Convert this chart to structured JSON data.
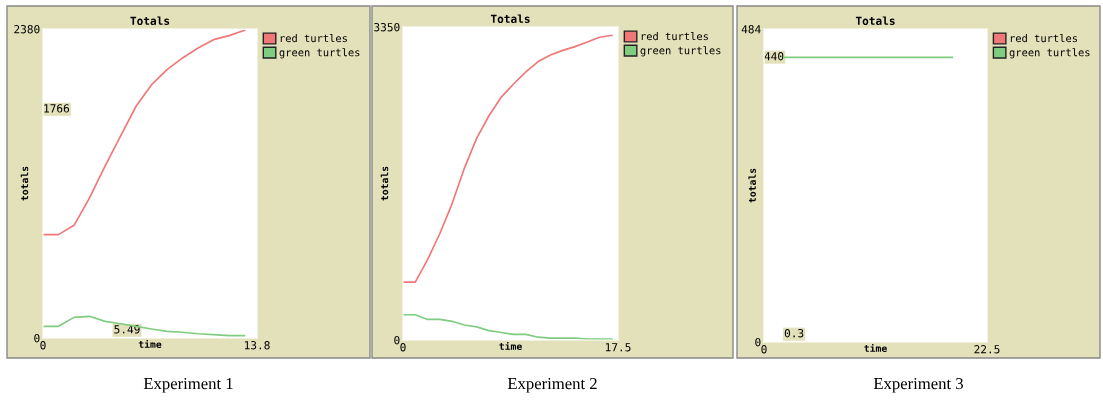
{
  "chart_data": [
    {
      "type": "line",
      "title": "Totals",
      "xlabel": "time",
      "ylabel": "totals",
      "xlim": [
        0,
        13.8
      ],
      "ylim": [
        0,
        2380
      ],
      "xticks": [
        0,
        13.8
      ],
      "yticks": [
        0,
        2380
      ],
      "grid": false,
      "legend": "right",
      "x": [
        0,
        1,
        2,
        3,
        4,
        5,
        6,
        7,
        8,
        9,
        10,
        11,
        12,
        13
      ],
      "series": [
        {
          "name": "red turtles",
          "color": "#f07878",
          "values": [
            796,
            796,
            868,
            1079,
            1323,
            1554,
            1785,
            1951,
            2067,
            2157,
            2234,
            2298,
            2329,
            2370
          ]
        },
        {
          "name": "green turtles",
          "color": "#80cc80",
          "values": [
            90,
            90,
            159,
            167,
            128,
            110,
            90,
            69,
            51,
            44,
            33,
            26,
            18,
            18
          ]
        }
      ],
      "annotations": [
        "1766",
        "5.49",
        "Experiment 1"
      ]
    },
    {
      "type": "line",
      "title": "Totals",
      "xlabel": "time",
      "ylabel": "totals",
      "xlim": [
        0,
        17.5
      ],
      "ylim": [
        0,
        3350
      ],
      "xticks": [
        0,
        17.5
      ],
      "yticks": [
        0,
        3350
      ],
      "grid": false,
      "legend": "right",
      "x": [
        0,
        1,
        2,
        3,
        4,
        5,
        6,
        7,
        8,
        9,
        10,
        11,
        12,
        13,
        14,
        15,
        16,
        17
      ],
      "series": [
        {
          "name": "red turtles",
          "color": "#f07878",
          "values": [
            620,
            620,
            860,
            1140,
            1460,
            1840,
            2160,
            2400,
            2600,
            2740,
            2870,
            2980,
            3050,
            3100,
            3140,
            3190,
            3240,
            3260
          ]
        },
        {
          "name": "green turtles",
          "color": "#80cc80",
          "values": [
            270,
            270,
            220,
            220,
            200,
            160,
            140,
            100,
            80,
            60,
            60,
            30,
            20,
            20,
            20,
            10,
            10,
            10
          ]
        }
      ],
      "annotations": [
        "Experiment 2"
      ]
    },
    {
      "type": "line",
      "title": "Totals",
      "xlabel": "time",
      "ylabel": "totals",
      "xlim": [
        0,
        22.5
      ],
      "ylim": [
        0,
        484
      ],
      "xticks": [
        0,
        22.5
      ],
      "yticks": [
        0,
        484
      ],
      "grid": false,
      "legend": "right",
      "x": [
        2,
        19
      ],
      "series": [
        {
          "name": "red turtles",
          "color": "#f07878",
          "values": [
            null,
            null
          ]
        },
        {
          "name": "green turtles",
          "color": "#80cc80",
          "values": [
            440,
            440
          ]
        }
      ],
      "annotations": [
        "440",
        "0.3",
        "Experiment 3"
      ]
    }
  ]
}
